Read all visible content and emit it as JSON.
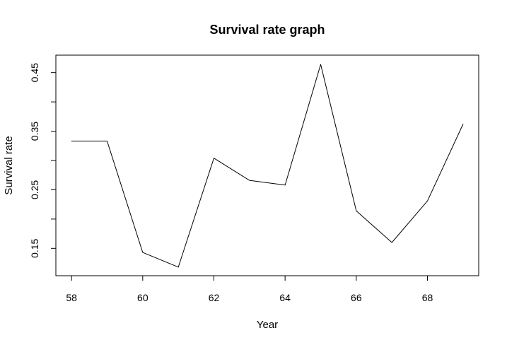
{
  "chart_data": {
    "type": "line",
    "title": "Survival rate graph",
    "xlabel": "Year",
    "ylabel": "Survival rate",
    "xlim": [
      58,
      69
    ],
    "ylim": [
      0.1,
      0.48
    ],
    "x_ticks": [
      58,
      60,
      62,
      64,
      66,
      68
    ],
    "x_tick_labels": [
      "58",
      "60",
      "62",
      "64",
      "66",
      "68"
    ],
    "y_ticks": [
      0.15,
      0.2,
      0.25,
      0.3,
      0.35,
      0.4,
      0.45
    ],
    "y_tick_labels": [
      "0.15",
      "",
      "0.25",
      "",
      "0.35",
      "",
      "0.45"
    ],
    "grid": false,
    "legend": "none",
    "colors": {
      "line": "#000000",
      "axis": "#000000",
      "background": "#ffffff"
    },
    "series": [
      {
        "x": [
          58,
          59,
          60,
          61,
          62,
          63,
          64,
          65,
          66,
          67,
          68,
          69
        ],
        "values": [
          0.333,
          0.333,
          0.143,
          0.118,
          0.304,
          0.266,
          0.258,
          0.464,
          0.214,
          0.16,
          0.231,
          0.362
        ]
      }
    ]
  }
}
